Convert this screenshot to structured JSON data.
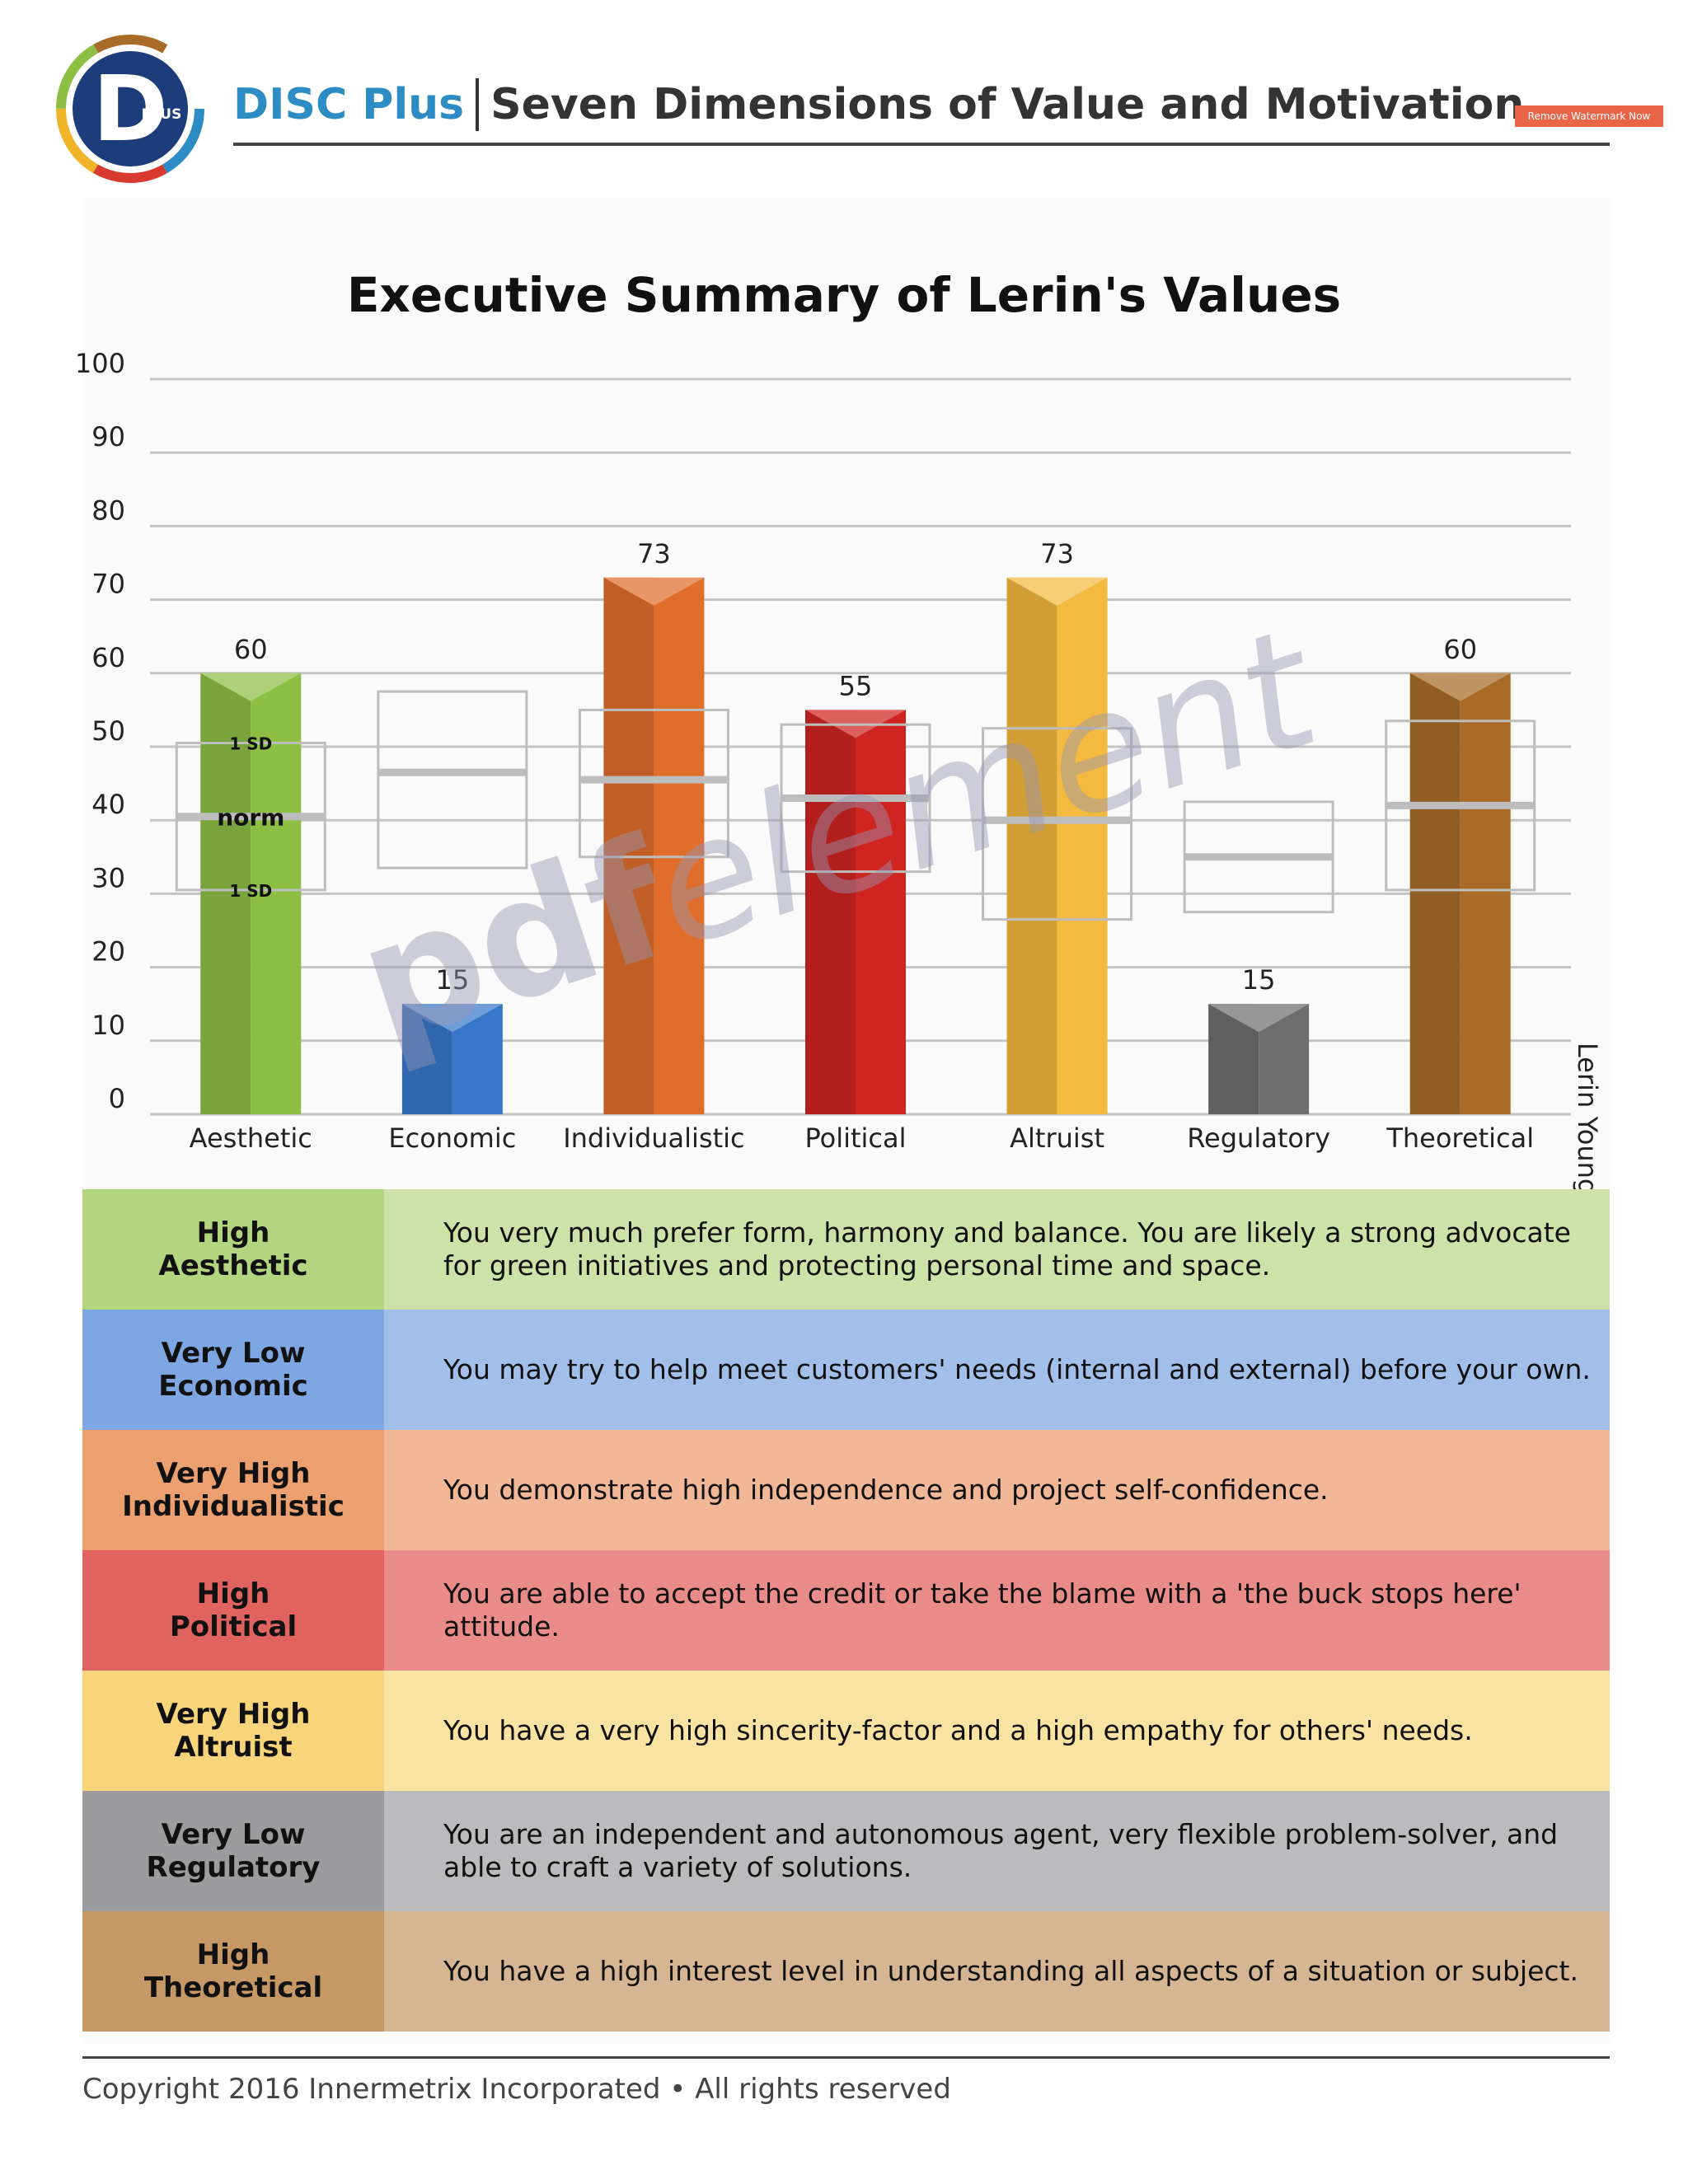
{
  "header": {
    "brand": "DISC Plus",
    "title": "Seven Dimensions of Value and Motivation",
    "logo_letter": "D",
    "logo_badge": "PLUS",
    "watermark_button": "Remove Watermark Now"
  },
  "chart_data": {
    "type": "bar",
    "title": "Executive Summary of Lerin's Values",
    "categories": [
      "Aesthetic",
      "Economic",
      "Individualistic",
      "Political",
      "Altruist",
      "Regulatory",
      "Theoretical"
    ],
    "values": [
      60,
      15,
      73,
      55,
      73,
      15,
      60
    ],
    "norm": [
      40.5,
      46.5,
      45.5,
      43,
      40,
      35,
      42
    ],
    "sd_upper": [
      50.5,
      57.5,
      55,
      53,
      52.5,
      42.5,
      53.5
    ],
    "sd_lower": [
      30.5,
      33.5,
      35,
      33,
      26.5,
      27.5,
      30.5
    ],
    "ylim": [
      0,
      100
    ],
    "yticks": [
      0,
      10,
      20,
      30,
      40,
      50,
      60,
      70,
      80,
      90,
      100
    ],
    "box_labels": {
      "upper": "1 SD",
      "middle": "norm",
      "lower": "1 SD"
    },
    "colors": [
      "#8dbf45",
      "#3777c9",
      "#e06d2b",
      "#cf2420",
      "#f4b93f",
      "#6e6e6e",
      "#a86c28"
    ],
    "side_label": "Lerin Young",
    "grid": true
  },
  "summary": [
    {
      "level": "High",
      "name": "Aesthetic",
      "text": "You very much prefer form, harmony and balance. You are likely a strong advocate for green initiatives and protecting personal time and space.",
      "label_color": "#b3d57f",
      "desc_color": "#cde2a8"
    },
    {
      "level": "Very Low",
      "name": "Economic",
      "text": "You may try to help meet customers' needs (internal and external) before your own.",
      "label_color": "#7ea6e2",
      "desc_color": "#a2bfea"
    },
    {
      "level": "Very High",
      "name": "Individualistic",
      "text": "You demonstrate high independence and project self-confidence.",
      "label_color": "#ec9f6f",
      "desc_color": "#f1b796"
    },
    {
      "level": "High",
      "name": "Political",
      "text": "You are able to accept the credit or take the blame with a 'the buck stops here' attitude.",
      "label_color": "#e0635f",
      "desc_color": "#e98b89"
    },
    {
      "level": "Very High",
      "name": "Altruist",
      "text": "You have a very high sincerity-factor and a high empathy for others' needs.",
      "label_color": "#f8d57b",
      "desc_color": "#f9e3a3"
    },
    {
      "level": "Very Low",
      "name": "Regulatory",
      "text": "You are an independent and autonomous agent, very flexible problem-solver, and able to craft a variety of solutions.",
      "label_color": "#9c9c9e",
      "desc_color": "#bbbbbd"
    },
    {
      "level": "High",
      "name": "Theoretical",
      "text": "You have a high interest level in understanding all aspects of a situation or subject.",
      "label_color": "#c59866",
      "desc_color": "#d6b593"
    }
  ],
  "footer": {
    "copyright": "Copyright 2016 Innermetrix Incorporated • All rights reserved"
  },
  "watermark": {
    "bold": "pdf",
    "light": "element"
  }
}
